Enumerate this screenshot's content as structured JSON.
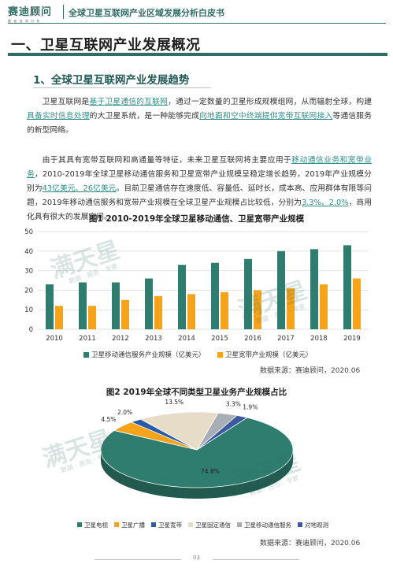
{
  "header": {
    "logo": "赛迪顾问",
    "logo_sub": "赛 迪 咨 询 分 析",
    "title": "全球卫星互联网产业区域发展分析白皮书"
  },
  "section": {
    "heading": "一、卫星互联网产业发展概况"
  },
  "subsection": {
    "heading": "1、全球卫星互联网产业发展趋势"
  },
  "paragraph1": {
    "t1": "卫星互联网是",
    "h1": "基于卫星通信的互联网",
    "t2": "，通过一定数量的卫星形成规模组网，从而辐射全球，构建",
    "h2": "具备实时信息处理",
    "t3": "的大卫星系统，是一种能够完成",
    "h3": "向地面和空中终端提供宽带互联网接入",
    "t4": "等通信服务的新型网络。"
  },
  "paragraph2": {
    "t1": "由于其具有宽带互联网和高通量等特征，未来卫星互联网将主要应用于",
    "h1": "移动通信业务和宽带业务",
    "t2": "，2010-2019年全球卫星移动通信服务和卫星宽带产业规模呈稳定增长趋势，2019年产业规模分别为",
    "h2": "43亿美元、26亿美元",
    "t3": "。目前卫星通信存在速度低、容量低、延时长，成本高、应用群体有限等问题，2019年移动通信服务和宽带产业规模在全球卫星产业规模占比较低，分别为",
    "h3": "3.3%、2.0%",
    "t4": "，商用化具有很大的发展空间。"
  },
  "figure1": {
    "title": "图1  2010-2019年全球卫星移动通信、卫星宽带产业规模",
    "source": "数据来源：赛迪顾问，2020.06"
  },
  "figure2": {
    "title": "图2  2019年全球不同类型卫星业务产业规模占比",
    "source": "数据来源：赛迪顾问，2020.06"
  },
  "watermark": {
    "text": "满天星",
    "sub": "数据 · 报告 · 专家"
  },
  "page_number": "03",
  "colors": {
    "teal": "#2f7d6f",
    "orange": "#f5a31a",
    "brand": "#2f6d66"
  },
  "chart_data": [
    {
      "type": "bar",
      "title": "图1  2010-2019年全球卫星移动通信、卫星宽带产业规模",
      "categories": [
        "2010",
        "2011",
        "2012",
        "2013",
        "2014",
        "2015",
        "2016",
        "2017",
        "2018",
        "2019"
      ],
      "series": [
        {
          "name": "卫星移动通信服务产业规模（亿美元）",
          "values": [
            23,
            24,
            24,
            26,
            33,
            34,
            36,
            40,
            41,
            43
          ],
          "color": "#2f7d6f"
        },
        {
          "name": "卫星宽带产业规模（亿美元）",
          "values": [
            12,
            12,
            15,
            17,
            18,
            19,
            20,
            21,
            23,
            26
          ],
          "color": "#f5a31a"
        }
      ],
      "ylim": [
        0,
        50
      ],
      "yticks": [
        0,
        10,
        20,
        30,
        40,
        50
      ],
      "grid": true,
      "legend": "bottom"
    },
    {
      "type": "pie",
      "title": "图2  2019年全球不同类型卫星业务产业规模占比",
      "slices": [
        {
          "label": "卫星电视",
          "value": 74.8,
          "text": "74.8%",
          "color": "#2f7d6f"
        },
        {
          "label": "卫星广播",
          "value": 4.5,
          "text": "4.5%",
          "color": "#f5a31a"
        },
        {
          "label": "卫星宽带",
          "value": 2.0,
          "text": "2.0%",
          "color": "#2b5aa8"
        },
        {
          "label": "卫星固定通信",
          "value": 13.5,
          "text": "13.5%",
          "color": "#e7dcc8"
        },
        {
          "label": "卫星移动通信服务",
          "value": 3.3,
          "text": "3.3%",
          "color": "#a8aeb6"
        },
        {
          "label": "对地观测",
          "value": 1.9,
          "text": "1.9%",
          "color": "#3d5aa0"
        }
      ],
      "legend": "bottom"
    }
  ]
}
